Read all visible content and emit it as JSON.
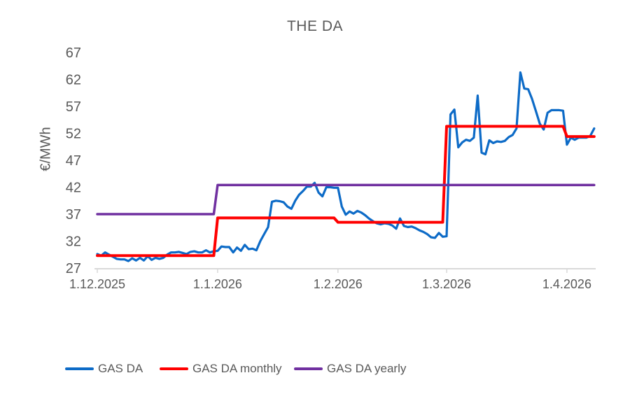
{
  "title": "THE DA",
  "y_axis": {
    "title": "€/MWh"
  },
  "x_axis": {
    "tick_labels": [
      "1.12.2025",
      "1.1.2026",
      "1.2.2026",
      "1.3.2026",
      "1.4.2026"
    ]
  },
  "legend": [
    {
      "label": "GAS DA",
      "color": "#0D6BC7"
    },
    {
      "label": "GAS DA monthly",
      "color": "#FF0000"
    },
    {
      "label": "GAS DA yearly",
      "color": "#7030A0"
    }
  ],
  "colors": {
    "text": "#595959",
    "axis_line": "#D9D9D9",
    "background": "#FFFFFF"
  },
  "chart_data": {
    "type": "line",
    "title": "THE DA",
    "xlabel": "",
    "ylabel": "€/MWh",
    "ylim": [
      27,
      67
    ],
    "y_ticks": [
      27,
      32,
      37,
      42,
      47,
      52,
      57,
      62,
      67
    ],
    "grid": false,
    "legend_position": "bottom",
    "x_frequency": "daily",
    "x_tick_labels": [
      "1.12.2025",
      "1.1.2026",
      "1.2.2026",
      "1.3.2026",
      "1.4.2026"
    ],
    "x_tick_day_index": [
      0,
      31,
      62,
      90,
      121
    ],
    "total_days": 129,
    "series": [
      {
        "name": "GAS DA",
        "color": "#0D6BC7",
        "width": 3.2,
        "kind": "daily",
        "values": [
          29.6,
          29.3,
          29.9,
          29.5,
          29.1,
          28.7,
          28.6,
          28.6,
          28.3,
          28.8,
          28.4,
          28.9,
          28.4,
          29.2,
          28.5,
          28.9,
          28.7,
          28.9,
          29.5,
          29.9,
          29.9,
          30.0,
          29.8,
          29.6,
          30.0,
          30.1,
          29.9,
          29.9,
          30.3,
          29.9,
          30.1,
          30.2,
          31.0,
          30.9,
          30.9,
          29.9,
          30.8,
          30.2,
          31.3,
          30.5,
          30.6,
          30.3,
          32.0,
          33.3,
          34.6,
          39.3,
          39.5,
          39.4,
          39.2,
          38.4,
          38.0,
          39.5,
          40.6,
          41.3,
          42.1,
          42.1,
          42.8,
          41.0,
          40.3,
          42.0,
          42.0,
          41.9,
          41.9,
          38.4,
          36.9,
          37.5,
          37.1,
          37.6,
          37.3,
          36.8,
          36.2,
          35.7,
          35.3,
          35.1,
          35.3,
          35.2,
          34.9,
          34.3,
          36.2,
          34.8,
          34.6,
          34.7,
          34.4,
          34.0,
          33.7,
          33.3,
          32.7,
          32.6,
          33.5,
          32.8,
          32.9,
          55.5,
          56.4,
          49.4,
          50.3,
          50.8,
          50.6,
          51.2,
          59.0,
          48.4,
          48.1,
          50.7,
          50.2,
          50.5,
          50.4,
          50.6,
          51.3,
          51.7,
          52.9,
          63.3,
          60.3,
          60.2,
          58.4,
          56.1,
          53.8,
          52.7,
          55.8,
          56.3,
          56.3,
          56.3,
          56.2,
          49.9,
          51.2,
          50.8,
          51.2,
          51.2,
          51.2,
          51.5,
          52.9
        ]
      },
      {
        "name": "GAS DA monthly",
        "color": "#FF0000",
        "width": 4,
        "kind": "step",
        "segments": [
          {
            "from_day": 0,
            "to_day": 31,
            "value": 29.3
          },
          {
            "from_day": 31,
            "to_day": 62,
            "value": 36.3
          },
          {
            "from_day": 62,
            "to_day": 90,
            "value": 35.5
          },
          {
            "from_day": 90,
            "to_day": 121,
            "value": 53.3
          },
          {
            "from_day": 121,
            "to_day": 129,
            "value": 51.4
          }
        ]
      },
      {
        "name": "GAS DA yearly",
        "color": "#7030A0",
        "width": 3.5,
        "kind": "step",
        "segments": [
          {
            "from_day": 0,
            "to_day": 31,
            "value": 37.0
          },
          {
            "from_day": 31,
            "to_day": 129,
            "value": 42.4
          }
        ]
      }
    ]
  }
}
